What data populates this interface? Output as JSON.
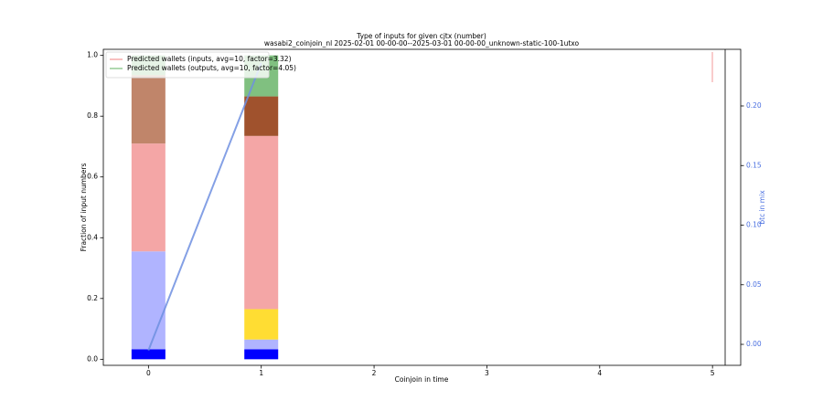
{
  "chart_data": {
    "type": "bar",
    "title": "Type of inputs for given cjtx (number)",
    "subtitle": "wasabi2_coinjoin_nl 2025-02-01 00-00-00--2025-03-01 00-00-00_unknown-static-100-1utxo",
    "xlabel": "Coinjoin in time",
    "ylabel": "Fraction of input numbers",
    "y2label": "btc in mix",
    "x": [
      0,
      1
    ],
    "xlim": [
      -0.4,
      5.25
    ],
    "xticks": [
      0,
      1,
      2,
      3,
      4,
      5
    ],
    "ylim": [
      -0.02,
      1.02
    ],
    "yticks": [
      {
        "value": 0,
        "label": "0.0"
      },
      0.2,
      0.4,
      0.6,
      0.8,
      {
        "value": 1,
        "label": "1.0"
      }
    ],
    "y2lim": [
      -0.0176,
      0.2475
    ],
    "y2ticks": [
      {
        "value": 0,
        "label": "0.00"
      },
      0.05,
      {
        "value": 0.1,
        "label": "0.10"
      },
      0.15,
      {
        "value": 0.2,
        "label": "0.20"
      }
    ],
    "series": [
      {
        "color": "#0000ff",
        "values": [
          0.033,
          0.033
        ]
      },
      {
        "color": "#b0b4ff",
        "values": [
          0.322,
          0.032
        ]
      },
      {
        "color": "#ffdd33",
        "values": [
          null,
          0.1
        ]
      },
      {
        "color": "#f4a6a6",
        "values": [
          0.355,
          0.57
        ]
      },
      {
        "color": "#c0856a",
        "values": [
          0.225,
          null
        ]
      },
      {
        "color": "#a0522d",
        "values": [
          null,
          0.13
        ]
      },
      {
        "color": "#80c080",
        "values": [
          0.065,
          0.135
        ]
      }
    ],
    "lines": [
      {
        "color": "#6f8fe0",
        "axis": "y2",
        "x": [
          0,
          1
        ],
        "values": [
          -0.005,
          0.236
        ]
      }
    ],
    "legend": {
      "loc": "upper left",
      "entries": [
        {
          "name": "Predicted wallets (inputs, avg=10, factor=3.32)",
          "color": "#f08080"
        },
        {
          "name": "Predicted wallets (outputs, avg=10, factor=4.05)",
          "color": "#60b060"
        }
      ]
    }
  }
}
